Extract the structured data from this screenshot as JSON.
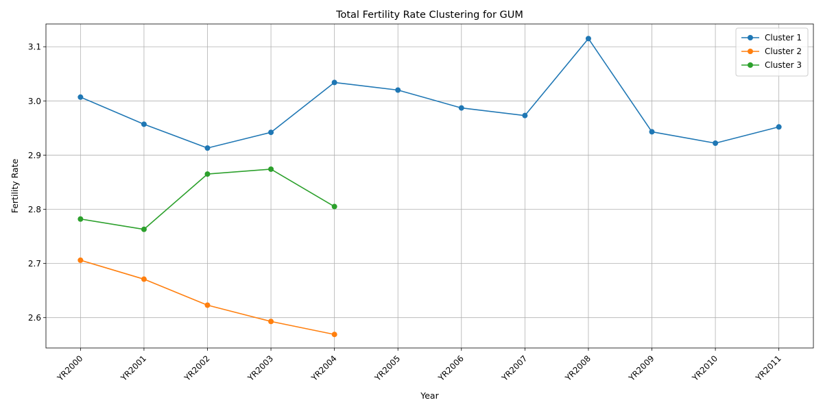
{
  "chart_data": {
    "type": "line",
    "title": "Total Fertility Rate Clustering for GUM",
    "xlabel": "Year",
    "ylabel": "Fertility Rate",
    "categories": [
      "YR2000",
      "YR2001",
      "YR2002",
      "YR2003",
      "YR2004",
      "YR2005",
      "YR2006",
      "YR2007",
      "YR2008",
      "YR2009",
      "YR2010",
      "YR2011"
    ],
    "ylim": [
      2.544,
      3.142
    ],
    "yticks": [
      2.6,
      2.7,
      2.8,
      2.9,
      3.0,
      3.1
    ],
    "ytick_labels": [
      "2.6",
      "2.7",
      "2.8",
      "2.9",
      "3.0",
      "3.1"
    ],
    "grid": true,
    "legend_position": "top-right",
    "series": [
      {
        "name": "Cluster 1",
        "color": "#1f77b4",
        "values": [
          3.007,
          2.957,
          2.913,
          2.942,
          3.034,
          3.02,
          2.987,
          2.973,
          3.115,
          2.943,
          2.922,
          2.952
        ]
      },
      {
        "name": "Cluster 2",
        "color": "#ff7f0e",
        "values": [
          2.706,
          2.671,
          2.623,
          2.593,
          2.569,
          null,
          null,
          null,
          null,
          null,
          null,
          null
        ]
      },
      {
        "name": "Cluster 3",
        "color": "#2ca02c",
        "values": [
          2.782,
          2.763,
          2.865,
          2.874,
          2.805,
          null,
          null,
          null,
          null,
          null,
          null,
          null
        ]
      }
    ]
  }
}
